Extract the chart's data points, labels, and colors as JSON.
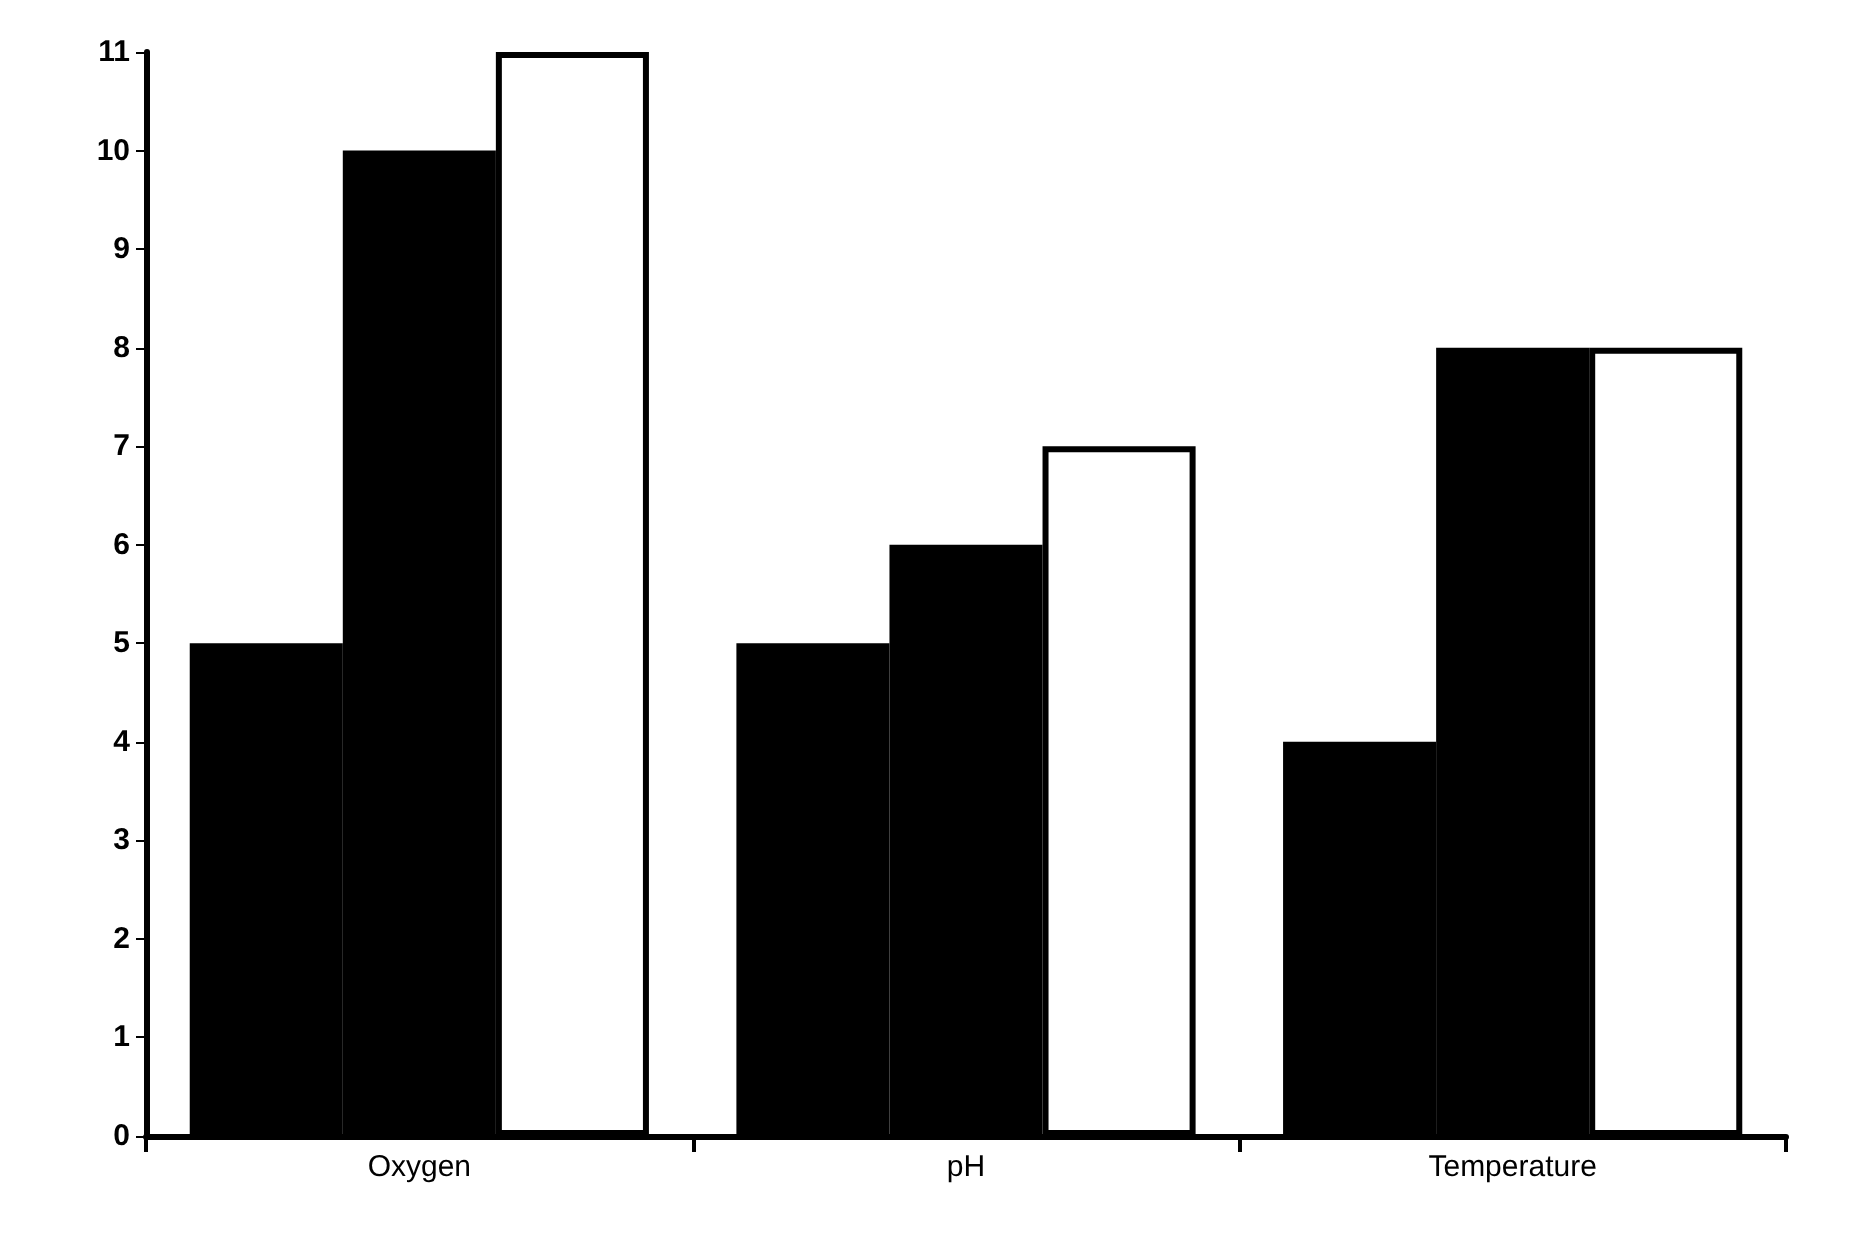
{
  "chart_data": {
    "type": "bar",
    "categories": [
      "Oxygen",
      "pH",
      "Temperature"
    ],
    "series": [
      {
        "color": "#000000",
        "values": [
          5,
          5,
          4
        ]
      },
      {
        "color": "#000000",
        "values": [
          10,
          6,
          8
        ]
      },
      {
        "color": "#ffffff",
        "values": [
          11,
          7,
          8
        ]
      }
    ],
    "ylim": [
      0,
      11
    ],
    "yticks": [
      0,
      1,
      2,
      3,
      4,
      5,
      6,
      7,
      8,
      9,
      10,
      11
    ],
    "grid": false
  }
}
